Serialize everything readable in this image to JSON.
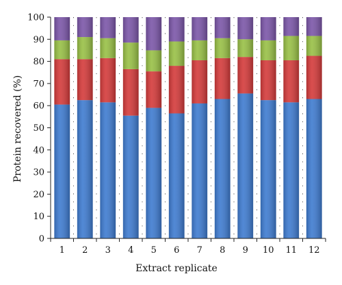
{
  "chart_data": {
    "type": "bar",
    "stacked": true,
    "title": "",
    "xlabel": "Extract replicate",
    "ylabel": "Protein recovered (%)",
    "ylim": [
      0,
      100
    ],
    "yticks": [
      0,
      10,
      20,
      30,
      40,
      50,
      60,
      70,
      80,
      90,
      100
    ],
    "categories": [
      "1",
      "2",
      "3",
      "4",
      "5",
      "6",
      "7",
      "8",
      "9",
      "10",
      "11",
      "12"
    ],
    "grid": false,
    "legend": "none",
    "series": [
      {
        "color": "#3E7BD0",
        "values": [
          60.5,
          62.5,
          61.5,
          55.5,
          59.0,
          56.5,
          61.0,
          63.0,
          65.5,
          62.5,
          61.5,
          63.0
        ]
      },
      {
        "color": "#D43A3A",
        "values": [
          20.5,
          18.5,
          20.0,
          21.0,
          16.5,
          21.5,
          19.5,
          18.5,
          16.5,
          18.0,
          19.0,
          19.5
        ]
      },
      {
        "color": "#98C045",
        "values": [
          8.5,
          10.0,
          9.0,
          12.0,
          9.5,
          11.0,
          9.0,
          9.0,
          8.0,
          9.0,
          11.0,
          9.0
        ]
      },
      {
        "color": "#7B56A8",
        "values": [
          10.5,
          9.0,
          9.5,
          11.5,
          15.0,
          11.0,
          10.5,
          9.5,
          10.0,
          10.5,
          8.5,
          8.5
        ]
      }
    ]
  }
}
